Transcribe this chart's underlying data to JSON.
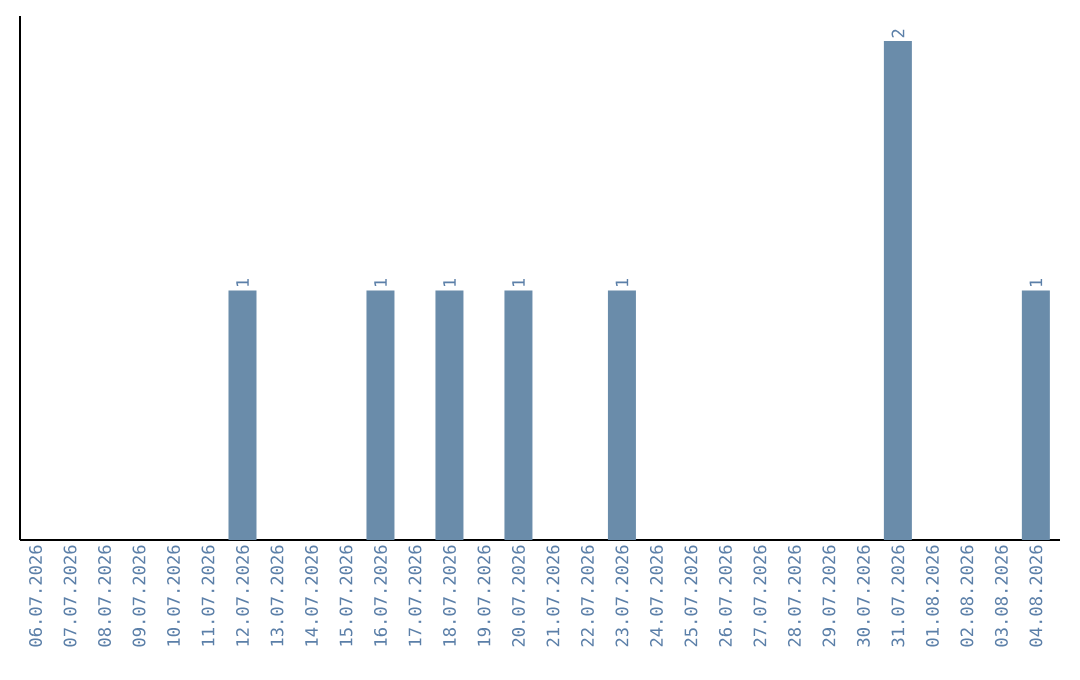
{
  "chart_data": {
    "type": "bar",
    "color": "#6a8caa",
    "categories": [
      "06.07.2026",
      "07.07.2026",
      "08.07.2026",
      "09.07.2026",
      "10.07.2026",
      "11.07.2026",
      "12.07.2026",
      "13.07.2026",
      "14.07.2026",
      "15.07.2026",
      "16.07.2026",
      "17.07.2026",
      "18.07.2026",
      "19.07.2026",
      "20.07.2026",
      "21.07.2026",
      "22.07.2026",
      "23.07.2026",
      "24.07.2026",
      "25.07.2026",
      "26.07.2026",
      "27.07.2026",
      "28.07.2026",
      "29.07.2026",
      "30.07.2026",
      "31.07.2026",
      "01.08.2026",
      "02.08.2026",
      "03.08.2026",
      "04.08.2026"
    ],
    "values": [
      0,
      0,
      0,
      0,
      0,
      0,
      1,
      0,
      0,
      0,
      1,
      0,
      1,
      0,
      1,
      0,
      0,
      1,
      0,
      0,
      0,
      0,
      0,
      0,
      0,
      2,
      0,
      0,
      0,
      1
    ],
    "value_labels": [
      null,
      null,
      null,
      null,
      null,
      null,
      "1",
      null,
      null,
      null,
      "1",
      null,
      "1",
      null,
      "1",
      null,
      null,
      "1",
      null,
      null,
      null,
      null,
      null,
      null,
      null,
      "2",
      null,
      null,
      null,
      "1"
    ]
  }
}
